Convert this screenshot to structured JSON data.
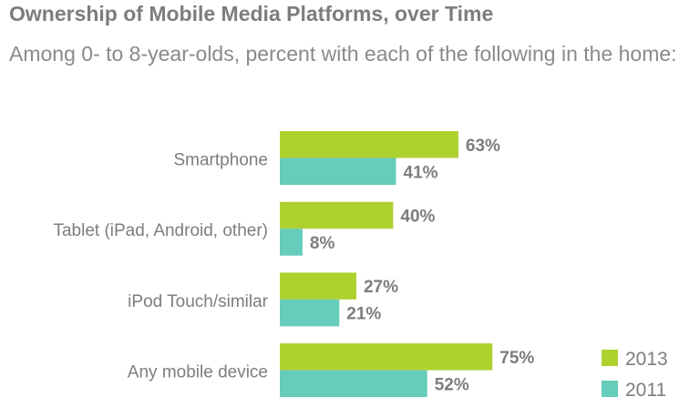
{
  "chart_data": {
    "type": "bar",
    "orientation": "horizontal",
    "title": "Ownership of Mobile Media Platforms, over Time",
    "subtitle": "Among 0- to 8-year-olds, percent with each of the following in the home:",
    "categories": [
      "Smartphone",
      "Tablet (iPad, Android, other)",
      "iPod Touch/similar",
      "Any mobile device"
    ],
    "series": [
      {
        "name": "2013",
        "color": "#add12f",
        "values": [
          63,
          40,
          27,
          75
        ]
      },
      {
        "name": "2011",
        "color": "#66ccbb",
        "values": [
          41,
          8,
          21,
          52
        ]
      }
    ],
    "value_suffix": "%",
    "xlim": [
      0,
      100
    ],
    "grid": false,
    "legend_position": "bottom-right",
    "text_color": "#7d7d7d"
  }
}
